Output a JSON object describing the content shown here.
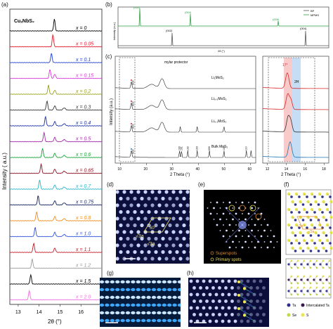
{
  "panels": {
    "a": {
      "letter": "(a)",
      "compound": "CuₓNbS₂",
      "ylabel": "Intensity ( a.u.)",
      "xlabel": "2θ (°)",
      "xticks": [
        "13",
        "14",
        "15",
        "16",
        "17"
      ],
      "curves": [
        {
          "label": "x = 0",
          "color": "#000000"
        },
        {
          "label": "x = 0.05",
          "color": "#e0162b"
        },
        {
          "label": "x = 0.1",
          "color": "#1f3fcf"
        },
        {
          "label": "x = 0.15",
          "color": "#d63ad6"
        },
        {
          "label": "x = 0.2",
          "color": "#9aa01a"
        },
        {
          "label": "x = 0.3",
          "color": "#333333"
        },
        {
          "label": "x = 0.4",
          "color": "#1a2fa3"
        },
        {
          "label": "x = 0.5",
          "color": "#a226a8"
        },
        {
          "label": "x = 0.6",
          "color": "#16a336"
        },
        {
          "label": "x = 0.65",
          "color": "#8a1020"
        },
        {
          "label": "x = 0.7",
          "color": "#21b3c4"
        },
        {
          "label": "x = 0.75",
          "color": "#0e1f5c"
        },
        {
          "label": "x = 0.8",
          "color": "#f08a18"
        },
        {
          "label": "x = 1.0",
          "color": "#2f52d8"
        },
        {
          "label": "x = 1.1",
          "color": "#c41a25"
        },
        {
          "label": "x = 1.2",
          "color": "#9a9a9a"
        },
        {
          "label": "x = 1.5",
          "color": "#000000"
        },
        {
          "label": "x = 2.0",
          "color": "#ef6fdc"
        }
      ]
    },
    "b": {
      "letter": "(b)",
      "ylabel": "Intensity (a.u.)",
      "xlabel": "2θ (°)",
      "legend": [
        {
          "name": "BP",
          "color": "#555555"
        },
        {
          "name": "MPMS",
          "color": "#2ea043"
        }
      ],
      "mpms_peaks": [
        "(002)",
        "(004)",
        "(006)"
      ],
      "bp_peaks": [
        "(002)",
        "(004)"
      ]
    },
    "c": {
      "letter": "(c)",
      "ylabel": "Intensity (a.u.)",
      "xlabel": "2 Theta (°)",
      "annotation": "mylar protector",
      "curves": [
        {
          "label": "Li₁MoS₂"
        },
        {
          "label": "Li₀.₅MoS₂"
        },
        {
          "label": "Li₀.₁MoS₂"
        },
        {
          "label": "Bulk MoS₂"
        }
      ],
      "peaks": [
        "002",
        "002",
        "002",
        "002",
        "100",
        "101",
        "102",
        "103",
        "006",
        "105",
        "110"
      ],
      "xticks_main": [
        "10",
        "20",
        "30",
        "40",
        "50",
        "60"
      ],
      "xticks_zoom": [
        "12",
        "14",
        "16",
        "18"
      ],
      "zoom_labels": [
        "17°",
        "2H"
      ],
      "xlabel_zoom": "2 Theta (°)"
    },
    "d": {
      "letter": "(d)",
      "labels": [
        "√3a",
        "60°",
        "√3a"
      ]
    },
    "e": {
      "letter": "(e)",
      "legend": [
        "Superspots",
        "Primary spots"
      ]
    },
    "f": {
      "letter": "(f)",
      "labels": [
        "√3a",
        "√3a"
      ],
      "legend": [
        "Ta",
        "Intercalated Ta",
        "Se",
        "S"
      ]
    },
    "g": {
      "letter": "(g)"
    },
    "h": {
      "letter": "(h)"
    }
  },
  "colors": {
    "mpms": "#2ea043",
    "bp": "#555555",
    "zoom_red": "#f4a6a6",
    "zoom_blue": "#9ec8f0"
  }
}
